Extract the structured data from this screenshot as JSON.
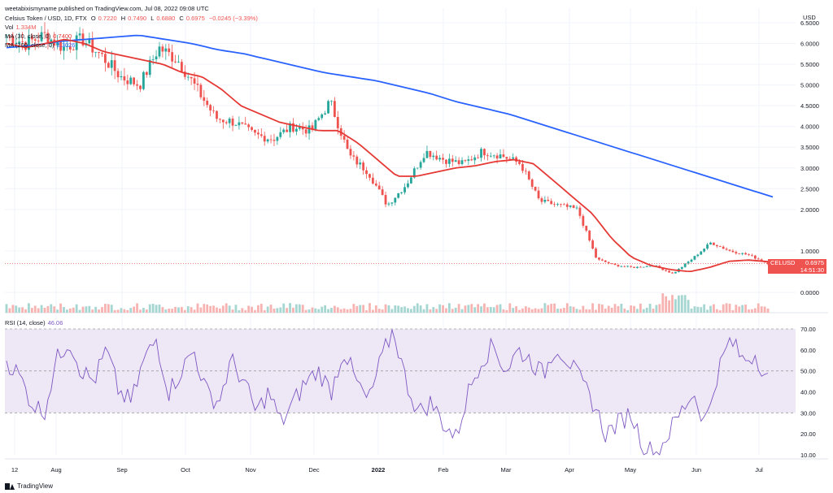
{
  "published_by": "weetabixismyname published on TradingView.com, Jul 08, 2022 09:08 UTC",
  "instrument": {
    "name": "Celsius Token / USD, 1D, FTX",
    "open_label": "O",
    "open": "0.7220",
    "high_label": "H",
    "high": "0.7490",
    "low_label": "L",
    "low": "0.6880",
    "close_label": "C",
    "close": "0.6975",
    "change": "−0.0245 (−3.39%)"
  },
  "volume": {
    "label": "Vol",
    "value": "1.334M"
  },
  "ma30": {
    "label": "MA (30, close, 0)",
    "value": "0.7400"
  },
  "ma200": {
    "label": "MA (200, close, 0)",
    "value": "2.3026"
  },
  "rsi": {
    "label": "RSI (14, close)",
    "value": "46.06"
  },
  "price_tag": {
    "symbol": "CELUSD",
    "price": "0.6975",
    "countdown": "14:51:30"
  },
  "footer": {
    "brand": "TradingView"
  },
  "colors": {
    "up": "#26a69a",
    "down": "#ef5350",
    "ma30": "#e53935",
    "ma200": "#2962ff",
    "rsi_line": "#7e57c2",
    "rsi_band": "#ede7f6",
    "grid": "#f0f3fa",
    "text": "#131722"
  },
  "chart_data": {
    "type": "candlestick",
    "axis_unit": "USD",
    "x_ticks": [
      "12",
      "Aug",
      "Sep",
      "Oct",
      "Nov",
      "Dec",
      "2022",
      "Feb",
      "Mar",
      "Apr",
      "May",
      "Jun",
      "Jul"
    ],
    "y_ticks": [
      "6.5000",
      "6.0000",
      "5.5000",
      "5.0000",
      "4.5000",
      "4.0000",
      "3.5000",
      "3.0000",
      "2.5000",
      "2.0000",
      "1.0000",
      "0.0000"
    ],
    "price_anchor_values": [
      6.2,
      6.0,
      6.2,
      5.9,
      6.1,
      5.7,
      5.2,
      5.0,
      5.9,
      5.6,
      4.9,
      4.2,
      4.1,
      3.8,
      3.7,
      4.0,
      3.9,
      4.6,
      3.3,
      2.9,
      2.1,
      2.6,
      3.4,
      3.2,
      3.1,
      3.4,
      3.3,
      3.1,
      2.2,
      2.1,
      2.0,
      0.8,
      0.65,
      0.6,
      0.65,
      0.45,
      0.8,
      1.2,
      1.0,
      0.9,
      0.7
    ],
    "ma30_anchor_values": [
      6.0,
      5.9,
      6.0,
      6.1,
      6.0,
      5.8,
      5.7,
      5.6,
      5.5,
      5.3,
      5.2,
      4.9,
      4.5,
      4.3,
      4.1,
      4.0,
      3.9,
      3.9,
      3.6,
      3.2,
      2.8,
      2.8,
      2.9,
      3.0,
      3.05,
      3.15,
      3.2,
      3.1,
      2.7,
      2.3,
      1.9,
      1.3,
      0.85,
      0.65,
      0.55,
      0.5,
      0.6,
      0.75,
      0.78,
      0.74
    ],
    "ma200_anchor_values": [
      5.9,
      5.95,
      6.05,
      6.1,
      6.15,
      6.2,
      6.1,
      6.0,
      5.85,
      5.75,
      5.6,
      5.45,
      5.3,
      5.2,
      5.1,
      4.95,
      4.8,
      4.6,
      4.45,
      4.3,
      4.1,
      3.9,
      3.7,
      3.5,
      3.3,
      3.1,
      2.9,
      2.7,
      2.5,
      2.3
    ],
    "rsi_levels": [
      70,
      50,
      30
    ],
    "rsi_y_ticks": [
      "70.00",
      "60.00",
      "50.00",
      "40.00",
      "30.00",
      "20.00",
      "10.00"
    ],
    "rsi_anchor_values": [
      55,
      48,
      35,
      30,
      55,
      65,
      50,
      45,
      60,
      40,
      35,
      55,
      65,
      40,
      50,
      60,
      40,
      35,
      55,
      45,
      30,
      40,
      25,
      35,
      45,
      50,
      40,
      60,
      45,
      35,
      55,
      70,
      45,
      30,
      35,
      25,
      18,
      40,
      55,
      62,
      50,
      60,
      55,
      48,
      62,
      55,
      45,
      35,
      20,
      25,
      30,
      15,
      10,
      20,
      30,
      40,
      25,
      50,
      65,
      55,
      58,
      46
    ]
  }
}
